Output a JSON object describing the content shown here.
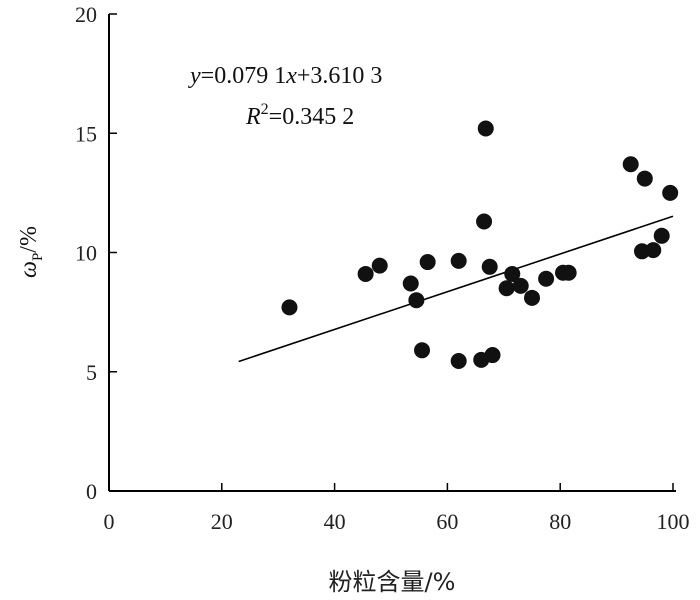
{
  "chart_data": {
    "type": "scatter",
    "xlabel": "粉粒含量/%",
    "ylabel_symbol": "ω",
    "ylabel_subscript": "P",
    "ylabel_unit": "/%",
    "xlim": [
      0,
      100
    ],
    "ylim": [
      0,
      20
    ],
    "x_ticks": [
      "0",
      "20",
      "40",
      "60",
      "80",
      "100"
    ],
    "y_ticks": [
      "0",
      "5",
      "10",
      "15",
      "20"
    ],
    "grid": false,
    "annotation": {
      "eq_y": "y",
      "eq_rest1": "=0.079 1",
      "eq_x": "x",
      "eq_rest2": "+3.610 3",
      "r_label": "R",
      "r_sup": "2",
      "r_value": "=0.345 2"
    },
    "trendline": {
      "slope": 0.0791,
      "intercept": 3.6103,
      "x_range": [
        23,
        100
      ]
    },
    "points": [
      {
        "x": 32,
        "y": 7.7
      },
      {
        "x": 45.5,
        "y": 9.1
      },
      {
        "x": 48,
        "y": 9.45
      },
      {
        "x": 53.5,
        "y": 8.7
      },
      {
        "x": 54.5,
        "y": 8.0
      },
      {
        "x": 55.5,
        "y": 5.9
      },
      {
        "x": 56.5,
        "y": 9.6
      },
      {
        "x": 62,
        "y": 9.65
      },
      {
        "x": 62,
        "y": 5.45
      },
      {
        "x": 66,
        "y": 5.5
      },
      {
        "x": 66.5,
        "y": 11.3
      },
      {
        "x": 66.8,
        "y": 15.2
      },
      {
        "x": 67.5,
        "y": 9.4
      },
      {
        "x": 68,
        "y": 5.7
      },
      {
        "x": 70.5,
        "y": 8.5
      },
      {
        "x": 71.5,
        "y": 9.1
      },
      {
        "x": 73,
        "y": 8.6
      },
      {
        "x": 75,
        "y": 8.1
      },
      {
        "x": 77.5,
        "y": 8.9
      },
      {
        "x": 80.5,
        "y": 9.15
      },
      {
        "x": 81.5,
        "y": 9.15
      },
      {
        "x": 92.5,
        "y": 13.7
      },
      {
        "x": 94.5,
        "y": 10.05
      },
      {
        "x": 95,
        "y": 13.1
      },
      {
        "x": 96.5,
        "y": 10.1
      },
      {
        "x": 98,
        "y": 10.7
      },
      {
        "x": 99.5,
        "y": 12.5
      }
    ]
  }
}
